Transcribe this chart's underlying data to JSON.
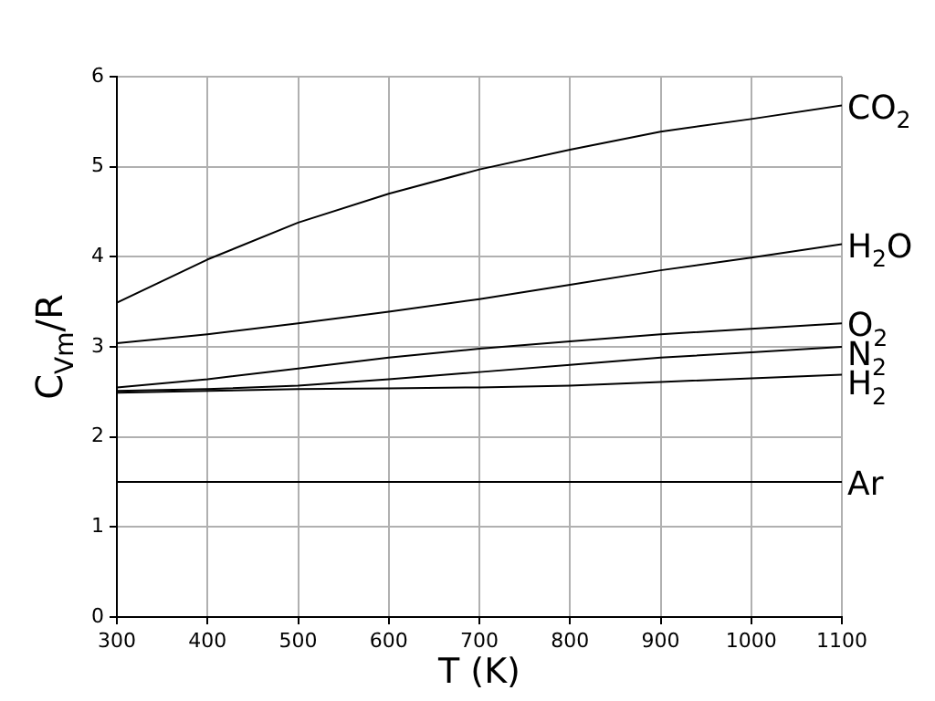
{
  "chart_data": {
    "type": "line",
    "xlabel": "T (K)",
    "ylabel": "C$_{Vm}$/R",
    "x": [
      300,
      400,
      500,
      600,
      700,
      800,
      900,
      1000,
      1100
    ],
    "series": [
      {
        "name": "CO$_{2}$",
        "color": "#000000",
        "values": [
          3.49,
          3.97,
          4.38,
          4.7,
          4.97,
          5.19,
          5.39,
          5.53,
          5.68
        ]
      },
      {
        "name": "H$_{2}$O",
        "color": "#000000",
        "values": [
          3.04,
          3.14,
          3.26,
          3.39,
          3.53,
          3.69,
          3.85,
          3.99,
          4.14
        ]
      },
      {
        "name": "O$_{2}$",
        "color": "#000000",
        "values": [
          2.55,
          2.64,
          2.76,
          2.88,
          2.98,
          3.06,
          3.14,
          3.2,
          3.26
        ]
      },
      {
        "name": "N$_{2}$",
        "color": "#000000",
        "values": [
          2.51,
          2.53,
          2.57,
          2.64,
          2.72,
          2.8,
          2.88,
          2.94,
          3.0
        ]
      },
      {
        "name": "H$_{2}$",
        "color": "#000000",
        "values": [
          2.49,
          2.51,
          2.53,
          2.54,
          2.55,
          2.57,
          2.61,
          2.65,
          2.69
        ]
      },
      {
        "name": "Ar",
        "color": "#000000",
        "values": [
          1.5,
          1.5,
          1.5,
          1.5,
          1.5,
          1.5,
          1.5,
          1.5,
          1.5
        ]
      }
    ],
    "xlim": [
      300,
      1100
    ],
    "xticks": [
      300,
      400,
      500,
      600,
      700,
      800,
      900,
      1000,
      1100
    ],
    "ylim": [
      0,
      6
    ],
    "yticks": [
      0,
      1,
      2,
      3,
      4,
      5,
      6
    ],
    "grid": true,
    "legend": false,
    "marker": "none",
    "line_style": "solid"
  }
}
